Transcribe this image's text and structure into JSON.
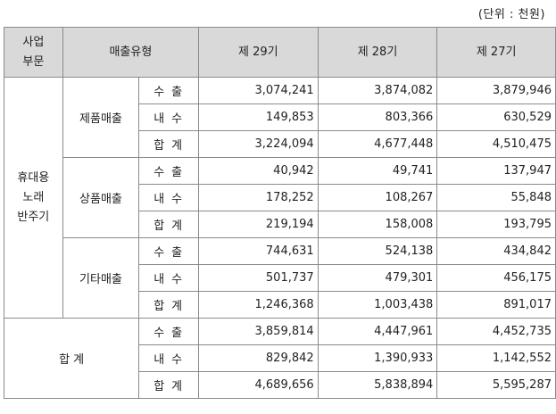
{
  "unit_note": "(단위 : 천원)",
  "headers": {
    "segment": "사업\n부문",
    "sales_type": "매출유형",
    "periods": [
      "제 29기",
      "제 28기",
      "제 27기"
    ]
  },
  "segment_name": "휴대용\n노래\n반주기",
  "groups": [
    {
      "name": "제품매출",
      "rows": [
        {
          "type": "수출",
          "values": [
            "3,074,241",
            "3,874,082",
            "3,879,946"
          ]
        },
        {
          "type": "내수",
          "values": [
            "149,853",
            "803,366",
            "630,529"
          ]
        },
        {
          "type": "합계",
          "values": [
            "3,224,094",
            "4,677,448",
            "4,510,475"
          ]
        }
      ]
    },
    {
      "name": "상품매출",
      "rows": [
        {
          "type": "수출",
          "values": [
            "40,942",
            "49,741",
            "137,947"
          ]
        },
        {
          "type": "내수",
          "values": [
            "178,252",
            "108,267",
            "55,848"
          ]
        },
        {
          "type": "합계",
          "values": [
            "219,194",
            "158,008",
            "193,795"
          ]
        }
      ]
    },
    {
      "name": "기타매출",
      "rows": [
        {
          "type": "수출",
          "values": [
            "744,631",
            "524,138",
            "434,842"
          ]
        },
        {
          "type": "내수",
          "values": [
            "501,737",
            "479,301",
            "456,175"
          ]
        },
        {
          "type": "합계",
          "values": [
            "1,246,368",
            "1,003,438",
            "891,017"
          ]
        }
      ]
    }
  ],
  "total": {
    "label": "합 계",
    "rows": [
      {
        "type": "수출",
        "values": [
          "3,859,814",
          "4,447,961",
          "4,452,735"
        ]
      },
      {
        "type": "내수",
        "values": [
          "829,842",
          "1,390,933",
          "1,142,552"
        ]
      },
      {
        "type": "합계",
        "values": [
          "4,689,656",
          "5,838,894",
          "5,595,287"
        ]
      }
    ]
  }
}
